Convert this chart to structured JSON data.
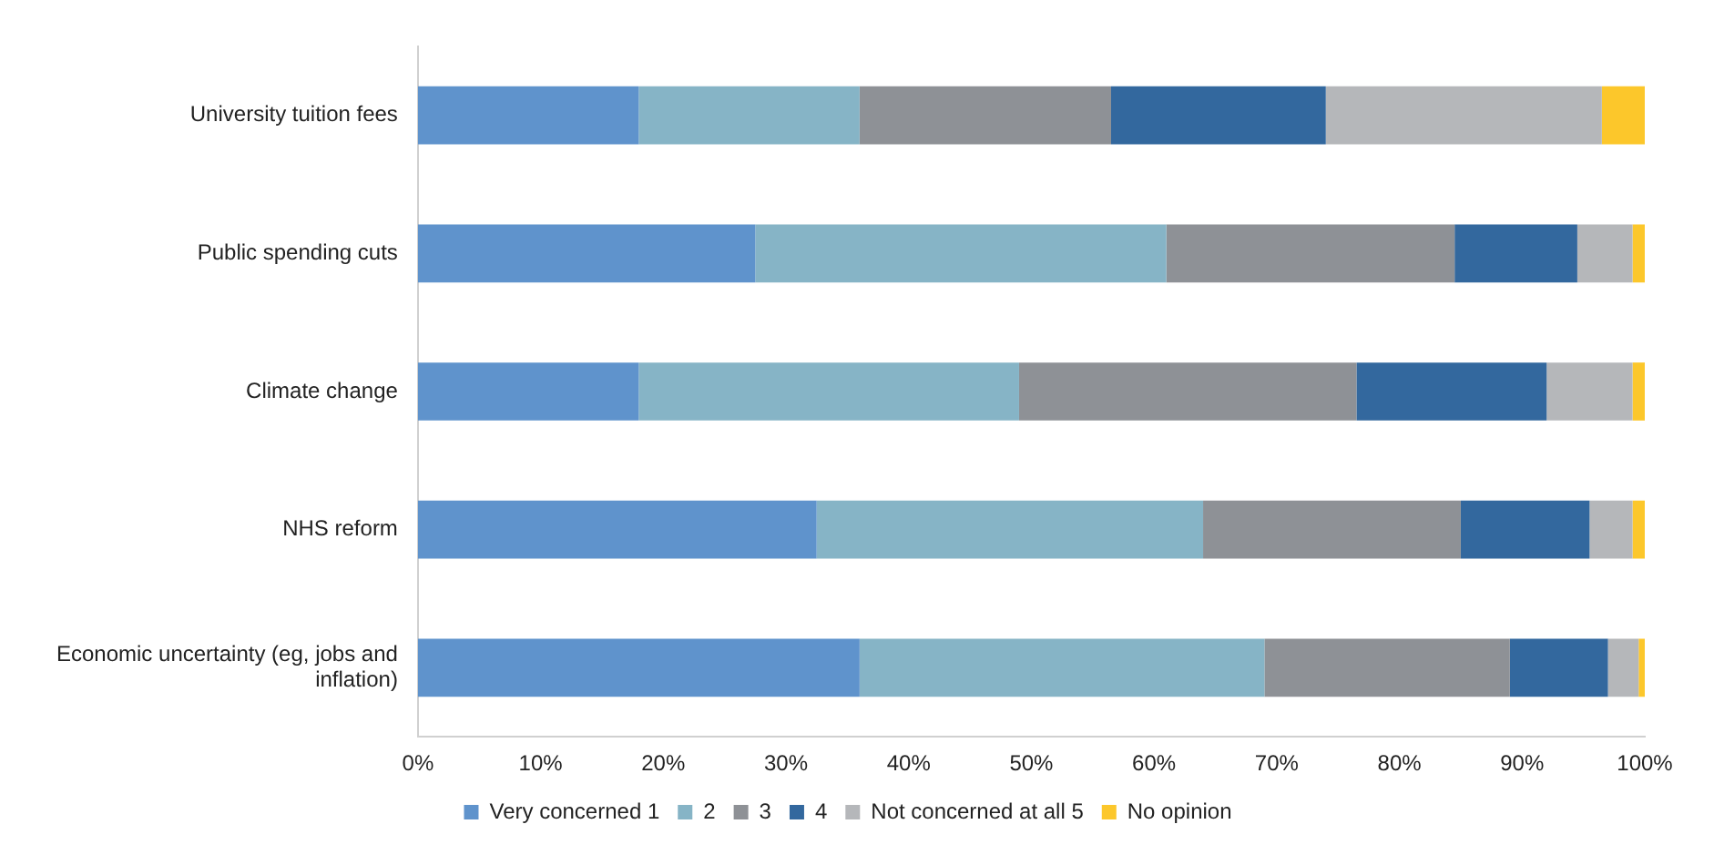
{
  "chart_data": {
    "type": "bar",
    "orientation": "horizontal",
    "stacked": true,
    "categories": [
      "University tuition fees",
      "Public spending cuts",
      "Climate change",
      "NHS reform",
      "Economic uncertainty (eg, jobs and inflation)"
    ],
    "series": [
      {
        "name": "Very concerned 1",
        "color": "#5f93cc",
        "values": [
          18,
          27.5,
          18,
          32.5,
          36
        ]
      },
      {
        "name": "2",
        "color": "#86b4c6",
        "values": [
          18,
          33.5,
          31,
          31.5,
          33
        ]
      },
      {
        "name": "3",
        "color": "#8e9196",
        "values": [
          20.5,
          23.5,
          27.5,
          21,
          20
        ]
      },
      {
        "name": "4",
        "color": "#33689e",
        "values": [
          17.5,
          10,
          15.5,
          10.5,
          8
        ]
      },
      {
        "name": "Not concerned at all 5",
        "color": "#b5b7ba",
        "values": [
          22.5,
          4.5,
          7,
          3.5,
          2.5
        ]
      },
      {
        "name": "No opinion",
        "color": "#fcc72b",
        "values": [
          3.5,
          1,
          1,
          1,
          0.5
        ]
      }
    ],
    "xlim": [
      0,
      100
    ],
    "xticks": [
      {
        "value": 0,
        "label": "0%"
      },
      {
        "value": 10,
        "label": "10%"
      },
      {
        "value": 20,
        "label": "20%"
      },
      {
        "value": 30,
        "label": "30%"
      },
      {
        "value": 40,
        "label": "40%"
      },
      {
        "value": 50,
        "label": "50%"
      },
      {
        "value": 60,
        "label": "60%"
      },
      {
        "value": 70,
        "label": "70%"
      },
      {
        "value": 80,
        "label": "80%"
      },
      {
        "value": 90,
        "label": "90%"
      },
      {
        "value": 100,
        "label": "100%"
      }
    ],
    "grid": false,
    "legend": "bottom"
  }
}
